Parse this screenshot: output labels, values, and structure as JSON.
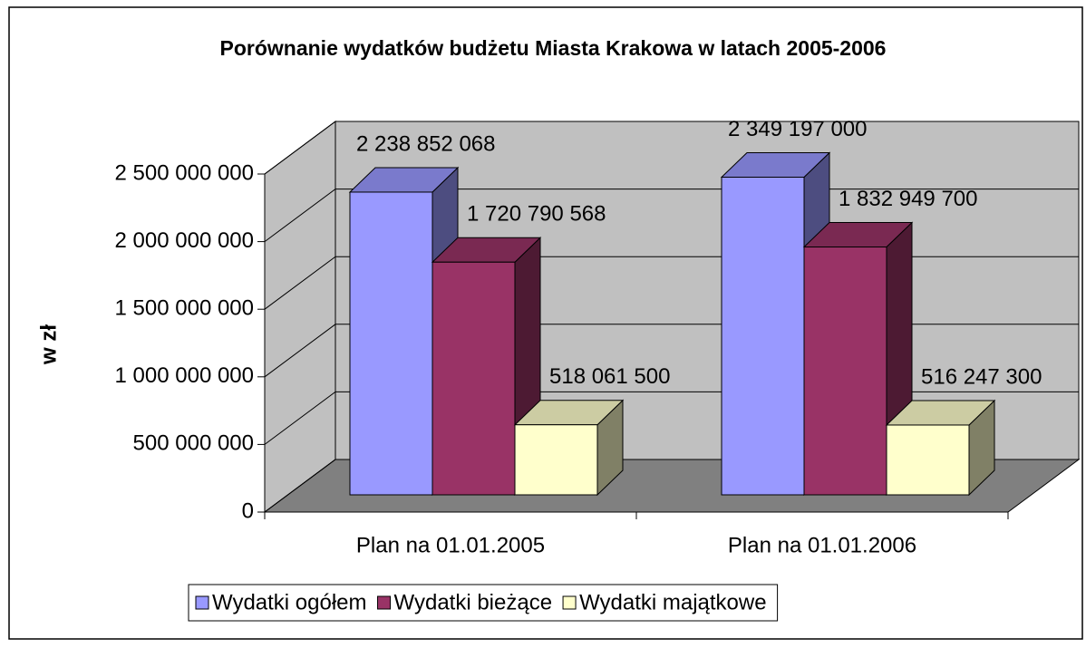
{
  "chart_data": {
    "type": "bar3d",
    "title": "Porównanie wydatków budżetu Miasta Krakowa w latach 2005-2006",
    "y_label": "w zł",
    "categories": [
      "Plan na 01.01.2005",
      "Plan na 01.01.2006"
    ],
    "series": [
      {
        "name": "Wydatki ogółem",
        "color": "#9999FF",
        "values": [
          2238852068,
          2349197000
        ],
        "value_labels": [
          "2 238 852 068",
          "2 349 197 000"
        ]
      },
      {
        "name": "Wydatki bieżące",
        "color": "#993366",
        "values": [
          1720790568,
          1832949700
        ],
        "value_labels": [
          "1 720 790 568",
          "1 832 949 700"
        ]
      },
      {
        "name": "Wydatki majątkowe",
        "color": "#FFFFCC",
        "values": [
          518061500,
          516247300
        ],
        "value_labels": [
          "518 061 500",
          "516 247 300"
        ]
      }
    ],
    "ylim": [
      0,
      2500000000
    ],
    "yticks": [
      0,
      {
        "value": 500000000,
        "label": "500 000 000"
      },
      {
        "value": 1000000000,
        "label": "1 000 000 000"
      },
      {
        "value": 1500000000,
        "label": "1 500 000 000"
      },
      {
        "value": 2000000000,
        "label": "2 000 000 000"
      },
      {
        "value": 2500000000,
        "label": "2 500 000 000"
      }
    ],
    "grid": true,
    "legend": "bottom"
  }
}
